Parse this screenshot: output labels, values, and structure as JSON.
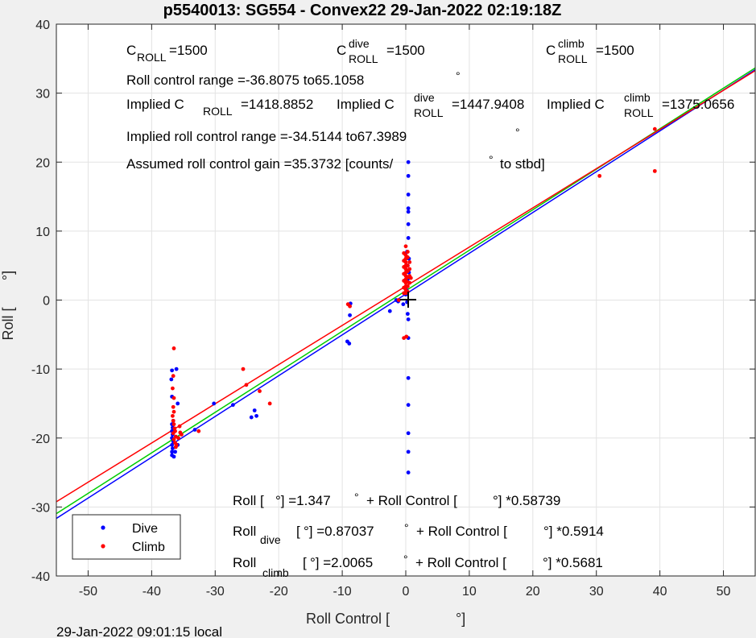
{
  "chart_data": {
    "type": "scatter",
    "title": "p5540013: SG554 - Convex22 29-Jan-2022 02:19:18Z",
    "xlabel": "Roll Control [",
    "xlabel_deg": "°]",
    "ylabel": "Roll [",
    "ylabel_deg": "°]",
    "xlim": [
      -55,
      55
    ],
    "ylim": [
      -40,
      40
    ],
    "xticks": [
      -50,
      -40,
      -30,
      -20,
      -10,
      0,
      10,
      20,
      30,
      40,
      50
    ],
    "yticks": [
      -40,
      -30,
      -20,
      -10,
      0,
      10,
      20,
      30,
      40
    ],
    "grid": true,
    "legend_position": "bottom-left",
    "footer": "29-Jan-2022 09:01:15 local",
    "colors": {
      "dive": "#0000ff",
      "climb": "#ff0000",
      "fit_all": "#00cc00"
    },
    "series": [
      {
        "name": "Dive",
        "color": "#0000ff",
        "points": [
          [
            -36.8,
            -22.5
          ],
          [
            -36.8,
            -22
          ],
          [
            -36.7,
            -21.5
          ],
          [
            -36.8,
            -21
          ],
          [
            -36.6,
            -20.5
          ],
          [
            -36.8,
            -20
          ],
          [
            -36.7,
            -19.5
          ],
          [
            -36.8,
            -19
          ],
          [
            -36.7,
            -18.5
          ],
          [
            -36.8,
            -18
          ],
          [
            -36.6,
            -17.5
          ],
          [
            -36.8,
            -14
          ],
          [
            -36.9,
            -11.5
          ],
          [
            -36.8,
            -10.2
          ],
          [
            -36.1,
            -10
          ],
          [
            -35.9,
            -15
          ],
          [
            -35.9,
            -21
          ],
          [
            -36.3,
            -22
          ],
          [
            -36.5,
            -22.7
          ],
          [
            -33.2,
            -18.8
          ],
          [
            -30.2,
            -15
          ],
          [
            -27.2,
            -15.2
          ],
          [
            -24.3,
            -17
          ],
          [
            -23.8,
            -16
          ],
          [
            -23.5,
            -16.8
          ],
          [
            -9.2,
            -6
          ],
          [
            -8.9,
            -6.3
          ],
          [
            -8.8,
            -2.2
          ],
          [
            -8.7,
            -0.5
          ],
          [
            -1.5,
            0
          ],
          [
            -1.2,
            -0.2
          ],
          [
            -0.4,
            -0.6
          ],
          [
            0,
            0.8
          ],
          [
            0.1,
            1.5
          ],
          [
            0.2,
            -0.3
          ],
          [
            0.3,
            3
          ],
          [
            0.3,
            -2
          ],
          [
            0.4,
            -2.8
          ],
          [
            0.4,
            -5.5
          ],
          [
            0.4,
            -11.3
          ],
          [
            0.4,
            -15.2
          ],
          [
            0.4,
            -19.3
          ],
          [
            0.4,
            -22
          ],
          [
            0.4,
            -25
          ],
          [
            0.4,
            9
          ],
          [
            0.4,
            11
          ],
          [
            0.4,
            12.8
          ],
          [
            0.4,
            13.3
          ],
          [
            0.4,
            15.3
          ],
          [
            0.4,
            18
          ],
          [
            0.4,
            20
          ],
          [
            0.3,
            5
          ],
          [
            0.5,
            4
          ],
          [
            0.5,
            6
          ],
          [
            0.2,
            7
          ],
          [
            -2.5,
            -1.6
          ]
        ]
      },
      {
        "name": "Climb",
        "color": "#ff0000",
        "points": [
          [
            -36.5,
            -7
          ],
          [
            -36.6,
            -11
          ],
          [
            -36.7,
            -12.8
          ],
          [
            -36.5,
            -14.2
          ],
          [
            -36.6,
            -15.5
          ],
          [
            -36.5,
            -16.2
          ],
          [
            -36.7,
            -16.8
          ],
          [
            -36.6,
            -17.5
          ],
          [
            -36.5,
            -18
          ],
          [
            -36.4,
            -18.6
          ],
          [
            -36.3,
            -19
          ],
          [
            -36.6,
            -19.3
          ],
          [
            -36.2,
            -19.8
          ],
          [
            -36.5,
            -20.2
          ],
          [
            -36.3,
            -20.7
          ],
          [
            -36.1,
            -21
          ],
          [
            -36.2,
            -21.3
          ],
          [
            -35.6,
            -18.3
          ],
          [
            -35.5,
            -19.2
          ],
          [
            -35.8,
            -20
          ],
          [
            -35.3,
            -19.5
          ],
          [
            -32.6,
            -19
          ],
          [
            -25.6,
            -10
          ],
          [
            -25.1,
            -12.3
          ],
          [
            -23,
            -13.2
          ],
          [
            -21.4,
            -15
          ],
          [
            -9.1,
            -0.6
          ],
          [
            -8.8,
            -0.9
          ],
          [
            -1.1,
            0
          ],
          [
            0,
            7.8
          ],
          [
            0,
            6.5
          ],
          [
            0,
            6
          ],
          [
            0,
            5.5
          ],
          [
            0,
            5
          ],
          [
            0,
            4.5
          ],
          [
            0,
            4
          ],
          [
            0,
            3.5
          ],
          [
            0,
            3
          ],
          [
            0,
            2.5
          ],
          [
            0,
            2
          ],
          [
            0,
            1.5
          ],
          [
            0,
            1
          ],
          [
            0.3,
            7
          ],
          [
            0.3,
            6.2
          ],
          [
            0.3,
            5
          ],
          [
            0.3,
            4.2
          ],
          [
            0.3,
            3.3
          ],
          [
            0.3,
            2.6
          ],
          [
            0.3,
            2
          ],
          [
            0.3,
            1.2
          ],
          [
            -0.3,
            6.8
          ],
          [
            -0.3,
            5.7
          ],
          [
            -0.3,
            4.8
          ],
          [
            -0.3,
            3.8
          ],
          [
            -0.3,
            2.8
          ],
          [
            -0.3,
            1.8
          ],
          [
            -0.3,
            1
          ],
          [
            0.6,
            5.5
          ],
          [
            0.6,
            4.5
          ],
          [
            0.6,
            3.5
          ],
          [
            0.6,
            2.5
          ],
          [
            0.1,
            -5.3
          ],
          [
            -0.3,
            -5.5
          ],
          [
            0.8,
            3.2
          ],
          [
            30.5,
            18
          ],
          [
            39.2,
            18.7
          ],
          [
            39.2,
            24.8
          ]
        ]
      }
    ],
    "fits": [
      {
        "name": "all",
        "intercept": 1.347,
        "slope": 0.58739,
        "color": "#00cc00"
      },
      {
        "name": "dive",
        "intercept": 0.87037,
        "slope": 0.5914,
        "color": "#0000ff"
      },
      {
        "name": "climb",
        "intercept": 2.0065,
        "slope": 0.5681,
        "color": "#ff0000"
      }
    ],
    "annotations": {
      "c_roll": {
        "main": "C",
        "sub": "ROLL",
        "value": "=1500"
      },
      "c_roll_dive": {
        "main": "C",
        "sup": "dive",
        "sub": "ROLL",
        "value": "=1500"
      },
      "c_roll_climb": {
        "main": "C",
        "sup": "climb",
        "sub": "ROLL",
        "value": "=1500"
      },
      "roll_range": "Roll control range =-36.8075 to65.1058",
      "implied_c_roll": {
        "main": "Implied C",
        "sub": "ROLL",
        "value": "=1418.8852"
      },
      "implied_c_dive": {
        "main": "Implied C",
        "sup": "dive",
        "sub": "ROLL",
        "value": "=1447.9408"
      },
      "implied_c_climb": {
        "main": "Implied C",
        "sup": "climb",
        "sub": "ROLL",
        "value": "=1375.0656"
      },
      "implied_range": "Implied roll control range =-34.5144 to67.3989",
      "gain_prefix": "Assumed roll control gain =35.3732 [counts/",
      "gain_suffix": "to stbd]",
      "deg": "°",
      "eq_all": {
        "lhs": "Roll [",
        "a": "°] =1.347",
        "b": "+ Roll Control [",
        "c": "°] *0.58739"
      },
      "eq_dive": {
        "lhs": "Roll",
        "sub": "dive",
        "a": "[",
        "b": "°] =0.87037",
        "c": "+ Roll Control [",
        "d": "°] *0.5914"
      },
      "eq_climb": {
        "lhs": "Roll",
        "sub": "climb",
        "a": "[",
        "b": "°] =2.0065",
        "c": "+ Roll Control [",
        "d": "°] *0.5681"
      }
    }
  }
}
